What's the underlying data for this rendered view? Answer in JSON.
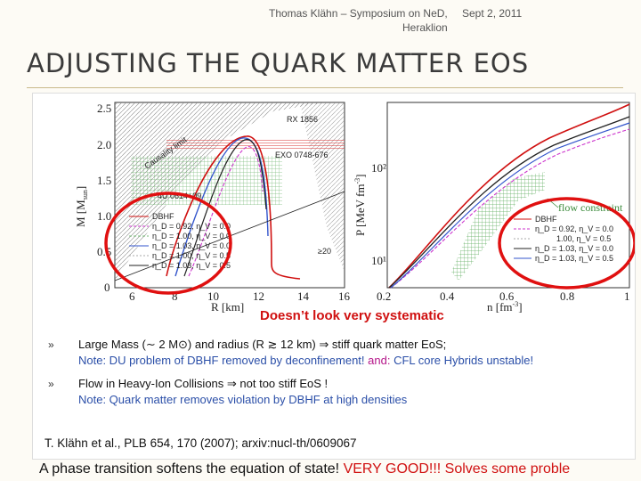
{
  "header": {
    "author_event": "Thomas Klähn – Symposium on NeD,",
    "location": "Heraklion",
    "date": "Sept 2, 2011"
  },
  "title": "ADJUSTING THE QUARK MATTER EOS",
  "figure": {
    "left_plot": {
      "ylabel": "M [M",
      "ylabel_sub": "sun",
      "ylabel_end": "]",
      "xlabel": "R [km]",
      "yticks": [
        "2.5",
        "2.0",
        "1.5",
        "1.0",
        "0.5",
        "0"
      ],
      "xticks": [
        "6",
        "8",
        "10",
        "12",
        "14",
        "16"
      ],
      "annotations": [
        "RX 1856",
        "Causality limit",
        "EXO 0748-676",
        "4U 0614+09",
        "DBHF",
        "≥20"
      ],
      "legend": [
        "DBHF",
        "η_D = 0.92, η_V = 0.0",
        "η_D = 1.00, η_V = 0.0",
        "η_D = 1.03, η_V = 0.0",
        "η_D = 1.00, η_V = 0.5",
        "η_D = 1.03, η_V = 0.5"
      ]
    },
    "right_plot": {
      "ylabel": "P [MeV fm",
      "ylabel_sup": "-3",
      "ylabel_end": "]",
      "xlabel": "n [fm",
      "xlabel_sup": "-3",
      "xlabel_end": "]",
      "yticks": [
        "10²",
        "10¹"
      ],
      "xticks": [
        "0.2",
        "0.4",
        "0.6",
        "0.8",
        "1"
      ],
      "annotation": "flow constraint",
      "legend": [
        "DBHF",
        "η_D = 0.92, η_V = 0.0",
        "1.00, η_V = 0.5",
        "η_D = 1.03, η_V = 0.0",
        "η_D = 1.03, η_V = 0.5"
      ]
    },
    "callout": "Doesn’t look very systematic"
  },
  "bullets": [
    {
      "line1": "Large Mass (∼ 2 M⊙) and radius (R ≳ 12 km) ⇒ stiff quark matter EoS;",
      "note": "Note: DU problem of DBHF removed by deconfinement! ",
      "note_and": "and: ",
      "note_tail": "CFL core Hybrids unstable!"
    },
    {
      "line1": "Flow in Heavy-Ion Collisions ⇒ not too stiff EoS !",
      "note": "Note: Quark matter removes violation by DBHF at high densities"
    }
  ],
  "reference": "T. Klähn et al., PLB 654, 170 (2007); arxiv:nucl-th/0609067",
  "footer": {
    "text": "A phase transition softens the equation of state! ",
    "highlight": "VERY GOOD!!! Solves some proble"
  },
  "colors": {
    "accent_red": "#d01010",
    "note_blue": "#2b4fa8",
    "pink": "#b5178a"
  }
}
